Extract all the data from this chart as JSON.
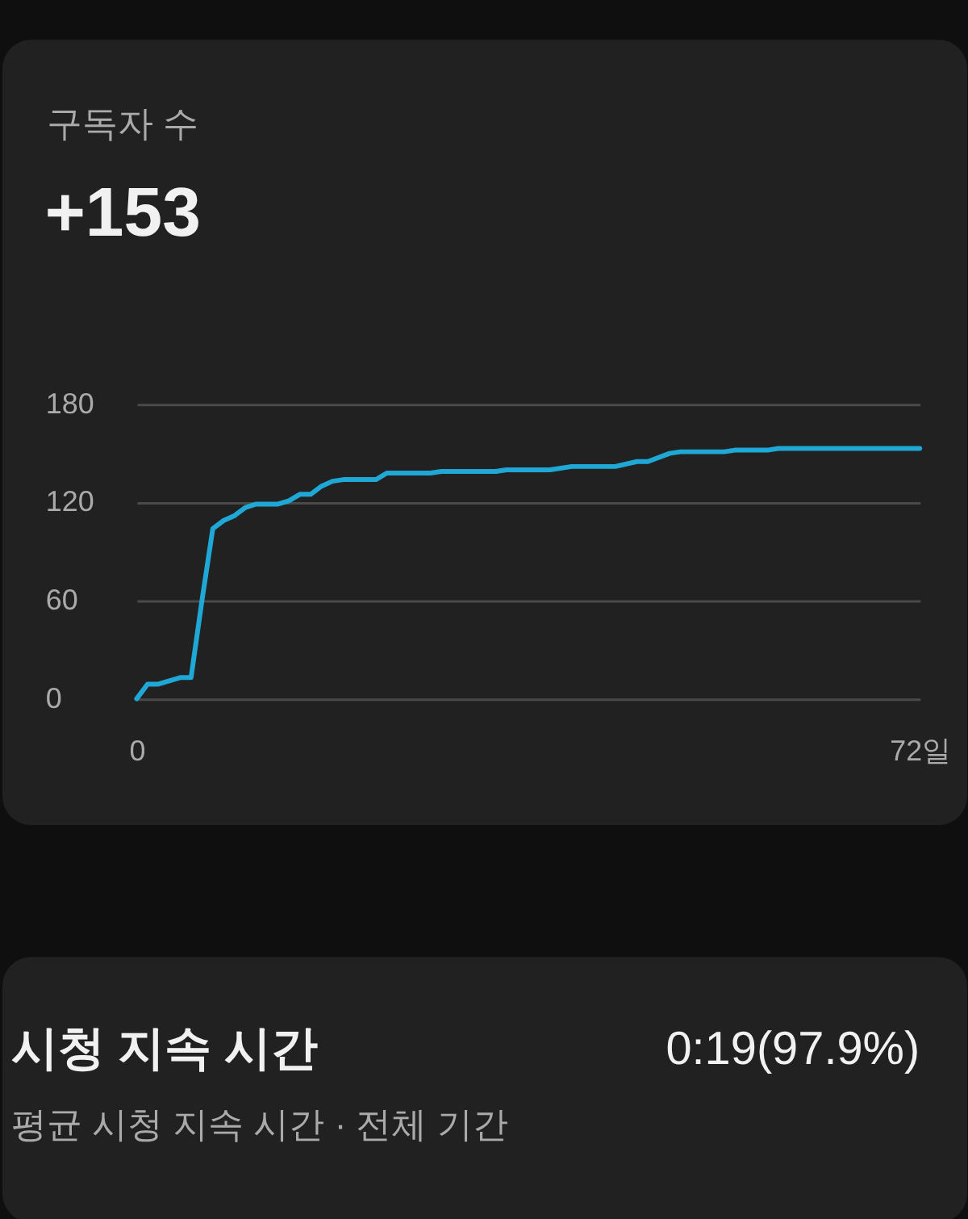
{
  "chart_data": {
    "type": "line",
    "title": "구독자 수",
    "subtitle": "+153",
    "x": [
      0,
      1,
      2,
      4,
      5,
      6,
      7,
      8,
      9,
      10,
      11,
      13,
      14,
      15,
      16,
      17,
      18,
      19,
      22,
      23,
      27,
      28,
      33,
      34,
      38,
      40,
      44,
      46,
      47,
      49,
      50,
      54,
      55,
      58,
      59,
      72
    ],
    "series": [
      {
        "color": "#1fa7d5",
        "values": [
          0,
          9,
          9,
          13,
          13,
          60,
          104,
          109,
          112,
          117,
          119,
          119,
          121,
          125,
          125,
          130,
          133,
          134,
          134,
          138,
          138,
          139,
          139,
          140,
          140,
          142,
          142,
          145,
          145,
          150,
          151,
          151,
          152,
          152,
          153,
          153
        ]
      }
    ],
    "xlim": [
      0,
      72
    ],
    "xticks": [
      0,
      {
        "value": 72,
        "label": "72일"
      }
    ],
    "ylim": [
      0,
      180
    ],
    "yticks": [
      0,
      60,
      120,
      180
    ],
    "grid": "y",
    "line_style": "solid",
    "annotations": [
      "시청 지속 시간",
      "0:19(97.9%)",
      "평균 시청 지속 시간 · 전체 기간"
    ]
  }
}
